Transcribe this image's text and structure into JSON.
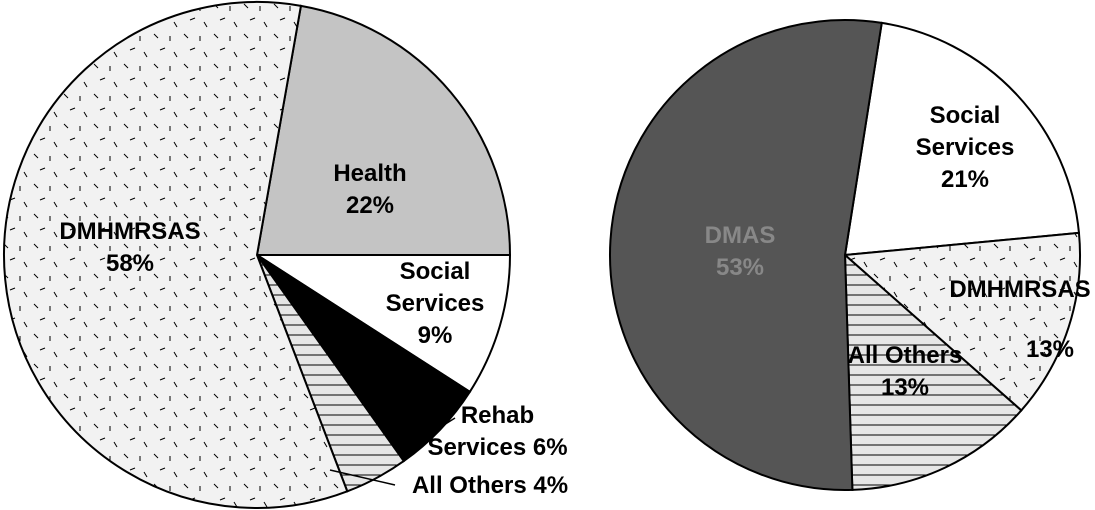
{
  "chart_data": [
    {
      "type": "pie",
      "categories": [
        "DMHMRSAS",
        "Health",
        "Social Services",
        "Rehab Services",
        "All Others"
      ],
      "values": [
        58,
        22,
        9,
        6,
        4
      ],
      "value_labels": [
        "58%",
        "22%",
        "9%",
        "6%",
        "4%"
      ],
      "colors": [
        "#f2f2f2",
        "#c4c4c4",
        "#ffffff",
        "#000000",
        "#e6e6e6"
      ]
    },
    {
      "type": "pie",
      "categories": [
        "DMAS",
        "Social Services",
        "DMHMRSAS",
        "All Others"
      ],
      "values": [
        53,
        21,
        13,
        13
      ],
      "value_labels": [
        "53%",
        "21%",
        "13%",
        "13%"
      ],
      "colors": [
        "#555555",
        "#ffffff",
        "#f2f2f2",
        "#e6e6e6"
      ]
    }
  ]
}
